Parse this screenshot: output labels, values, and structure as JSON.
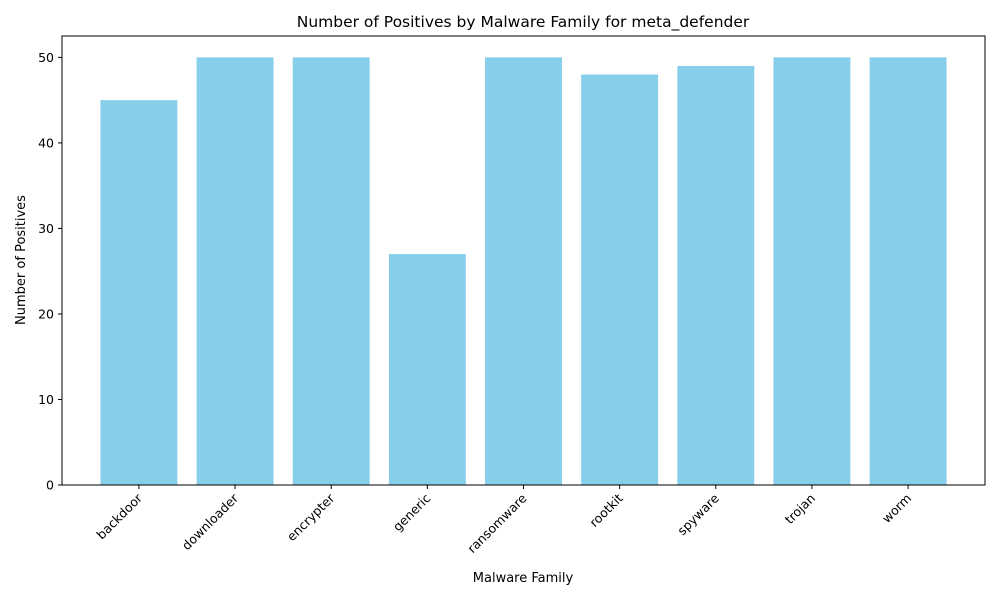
{
  "chart_data": {
    "type": "bar",
    "title": "Number of Positives by Malware Family for meta_defender",
    "xlabel": "Malware Family",
    "ylabel": "Number of Positives",
    "categories": [
      "backdoor",
      "downloader",
      "encrypter",
      "generic",
      "ransomware",
      "rootkit",
      "spyware",
      "trojan",
      "worm"
    ],
    "values": [
      45,
      50,
      50,
      27,
      50,
      48,
      49,
      50,
      50
    ],
    "ylim": [
      0,
      52.5
    ],
    "yticks": [
      0,
      10,
      20,
      30,
      40,
      50
    ],
    "bar_color": "#87CEEB",
    "grid": false,
    "legend": "none"
  }
}
